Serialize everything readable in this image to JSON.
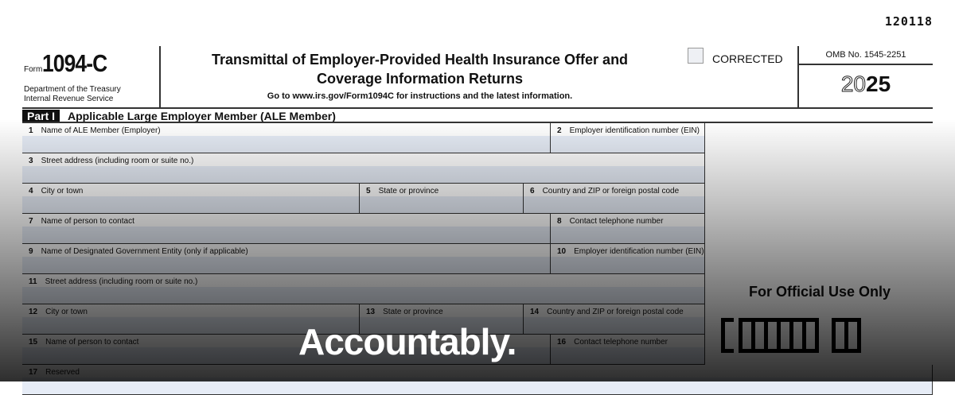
{
  "form": {
    "code": "120118",
    "form_label": "Form",
    "form_number": "1094-C",
    "dept_line1": "Department of the Treasury",
    "dept_line2": "Internal Revenue Service",
    "title_line1": "Transmittal of Employer-Provided Health Insurance Offer and",
    "title_line2": "Coverage Information Returns",
    "goto": "Go to www.irs.gov/Form1094C for instructions and the latest information.",
    "corrected": "CORRECTED",
    "omb": "OMB No. 1545-2251",
    "year_outline": "20",
    "year_bold": "25",
    "part_tag": "Part I",
    "part_title": "Applicable Large Employer Member (ALE Member)",
    "official": "For Official Use Only",
    "fields": [
      {
        "num": "1",
        "label": "Name of ALE Member (Employer)"
      },
      {
        "num": "2",
        "label": "Employer identification number (EIN)"
      },
      {
        "num": "3",
        "label": "Street address (including room or suite no.)"
      },
      {
        "num": "4",
        "label": "City or town"
      },
      {
        "num": "5",
        "label": "State or province"
      },
      {
        "num": "6",
        "label": "Country and ZIP or foreign postal code"
      },
      {
        "num": "7",
        "label": "Name of person to contact"
      },
      {
        "num": "8",
        "label": "Contact telephone number"
      },
      {
        "num": "9",
        "label": "Name of Designated Government Entity (only if applicable)"
      },
      {
        "num": "10",
        "label": "Employer identification number (EIN)"
      },
      {
        "num": "11",
        "label": "Street address (including room or suite no.)"
      },
      {
        "num": "12",
        "label": "City or town"
      },
      {
        "num": "13",
        "label": "State or province"
      },
      {
        "num": "14",
        "label": "Country and ZIP or foreign postal code"
      },
      {
        "num": "15",
        "label": "Name of person to contact"
      },
      {
        "num": "16",
        "label": "Contact telephone number"
      },
      {
        "num": "17",
        "label": "Reserved"
      }
    ]
  },
  "overlay": {
    "brand": "Accountably."
  }
}
